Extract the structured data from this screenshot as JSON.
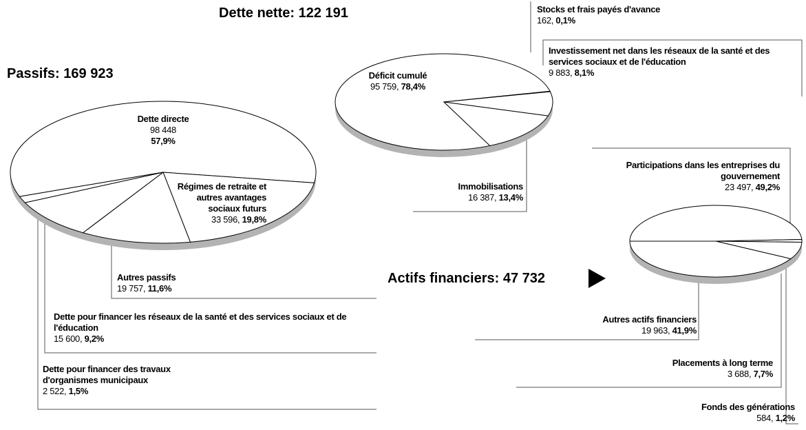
{
  "chart_data": [
    {
      "type": "pie",
      "title": "Passifs: 169 923",
      "categories": [
        "Dette directe",
        "Régimes de retraite et autres avantages sociaux futurs",
        "Autres passifs",
        "Dette pour financer les réseaux de la santé et des services sociaux et de l'éducation",
        "Dette pour financer des travaux d'organismes municipaux"
      ],
      "values": [
        98448,
        33596,
        19757,
        15600,
        2522
      ],
      "value_labels": [
        "98 448",
        "33 596",
        "19 757",
        "15 600",
        "2 522"
      ],
      "percents": [
        57.9,
        19.8,
        11.6,
        9.2,
        1.5
      ],
      "percent_labels": [
        "57,9%",
        "19,8%",
        "11,6%",
        "9,2%",
        "1,5%"
      ],
      "color": "#ffffff"
    },
    {
      "type": "pie",
      "title": "Dette nette: 122 191",
      "categories": [
        "Déficit cumulé",
        "Stocks et frais payés d'avance",
        "Investissement net dans les réseaux de la santé et des services sociaux et de l'éducation",
        "Immobilisations"
      ],
      "values": [
        95759,
        162,
        9883,
        16387
      ],
      "value_labels": [
        "95 759",
        "162",
        "9 883",
        "16 387"
      ],
      "percents": [
        78.4,
        0.1,
        8.1,
        13.4
      ],
      "percent_labels": [
        "78,4%",
        "0,1%",
        "8,1%",
        "13,4%"
      ],
      "color": "#ffffff"
    },
    {
      "type": "pie",
      "title": "Actifs financiers: 47 732",
      "categories": [
        "Participations dans les entreprises du gouvernement",
        "Fonds des générations",
        "Placements à long terme",
        "Autres actifs financiers"
      ],
      "values": [
        23497,
        584,
        3688,
        19963
      ],
      "value_labels": [
        "23 497",
        "584",
        "3 688",
        "19 963"
      ],
      "percents": [
        49.2,
        1.2,
        7.7,
        41.9
      ],
      "percent_labels": [
        "49,2%",
        "1,2%",
        "7,7%",
        "41,9%"
      ],
      "color": "#ffffff"
    }
  ]
}
